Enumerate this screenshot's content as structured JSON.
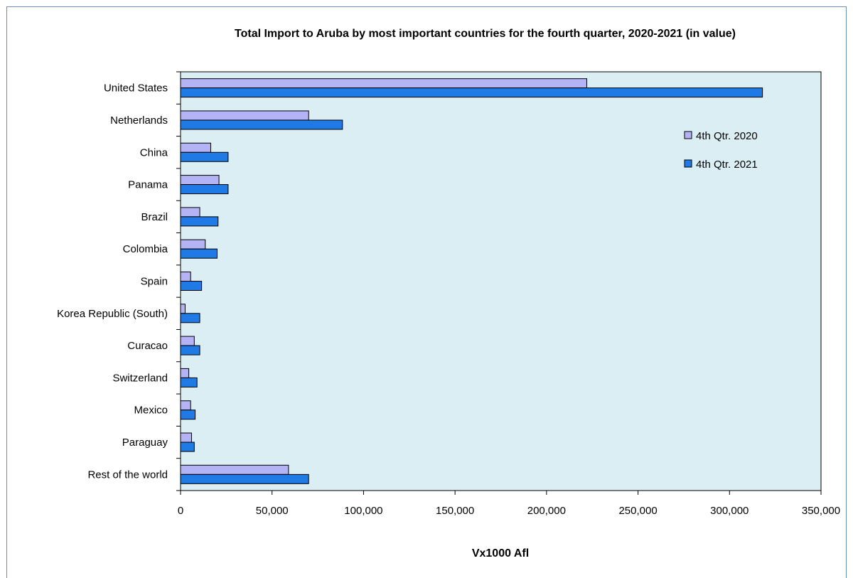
{
  "colors": {
    "series_2020": "#b3b3f5",
    "series_2021": "#1f7ae6",
    "plot_background": "#daeef3",
    "frame_border": "#6d8fbf"
  },
  "chart_data": {
    "type": "bar",
    "orientation": "horizontal",
    "title": "Total Import to Aruba by most important countries for the fourth quarter, 2020-2021 (in value)",
    "xlabel": "Vx1000 Afl",
    "ylabel": "",
    "categories": [
      "United States",
      "Netherlands",
      "China",
      "Panama",
      "Brazil",
      "Colombia",
      "Spain",
      "Korea Republic (South)",
      "Curacao",
      "Switzerland",
      "Mexico",
      "Paraguay",
      "Rest of the world"
    ],
    "series": [
      {
        "name": "4th Qtr. 2020",
        "values": [
          222000,
          70000,
          16500,
          21000,
          10500,
          13500,
          5500,
          2500,
          7500,
          4500,
          5500,
          6000,
          59000
        ]
      },
      {
        "name": "4th Qtr. 2021",
        "values": [
          318000,
          88500,
          26000,
          26000,
          20500,
          20000,
          11500,
          10500,
          10500,
          9000,
          8000,
          7500,
          70000
        ]
      }
    ],
    "xlim": [
      0,
      350000
    ],
    "xticks": [
      0,
      50000,
      100000,
      150000,
      200000,
      250000,
      300000,
      350000
    ],
    "xtick_labels": [
      "0",
      "50,000",
      "100,000",
      "150,000",
      "200,000",
      "250,000",
      "300,000",
      "350,000"
    ],
    "grid": false,
    "legend_position": "top-right"
  }
}
